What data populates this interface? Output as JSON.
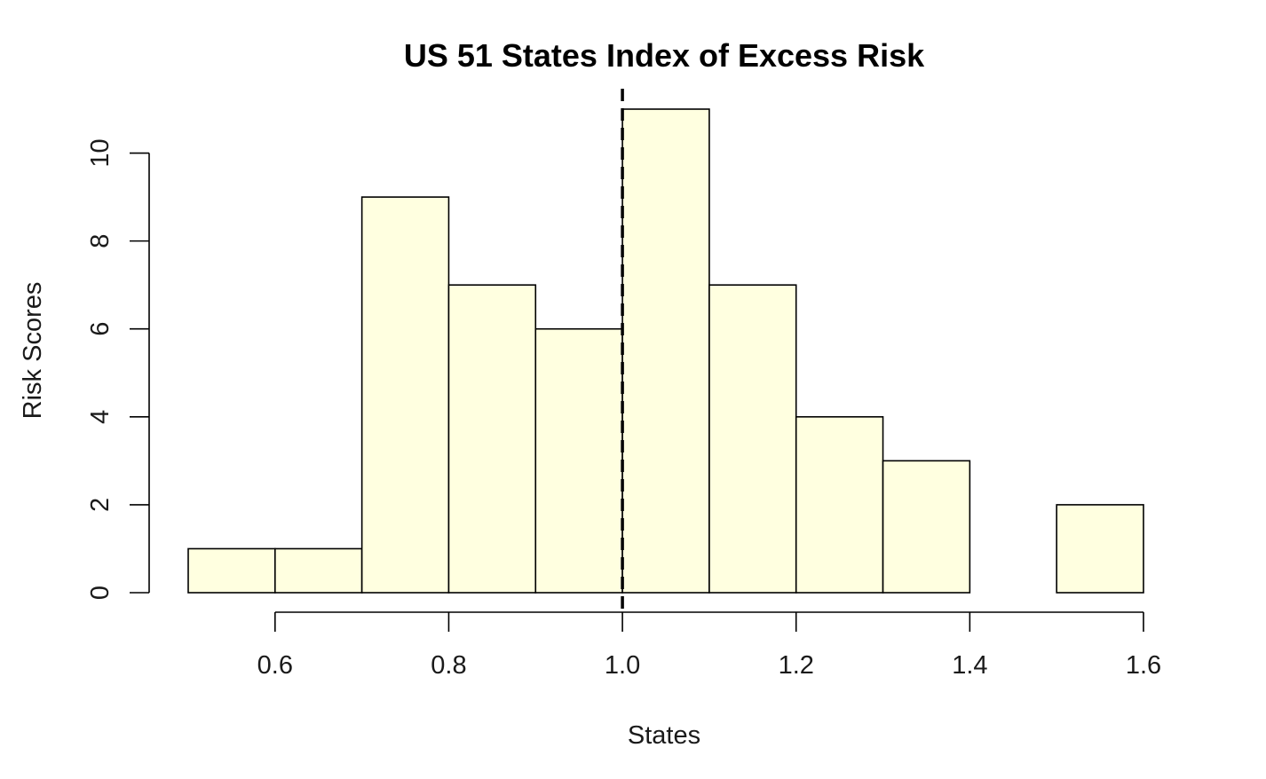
{
  "chart_data": {
    "type": "histogram",
    "title": "US 51 States Index of Excess Risk",
    "xlabel": "States",
    "ylabel": "Risk Scores",
    "bin_edges": [
      0.5,
      0.6,
      0.7,
      0.8,
      0.9,
      1.0,
      1.1,
      1.2,
      1.3,
      1.4,
      1.5,
      1.6
    ],
    "counts": [
      1,
      1,
      9,
      7,
      6,
      11,
      7,
      4,
      3,
      0,
      2
    ],
    "xlim": [
      0.5,
      1.6
    ],
    "ylim": [
      0,
      11
    ],
    "x_ticks": [
      0.6,
      0.8,
      1.0,
      1.2,
      1.4,
      1.6
    ],
    "x_tick_labels": [
      "0.6",
      "0.8",
      "1.0",
      "1.2",
      "1.4",
      "1.6"
    ],
    "y_ticks": [
      0,
      2,
      4,
      6,
      8,
      10
    ],
    "y_tick_labels": [
      "0",
      "2",
      "4",
      "6",
      "8",
      "10"
    ],
    "reference_line": {
      "x": 1.0,
      "style": "dashed"
    },
    "bar_color": "#ffffe0",
    "grid": false,
    "legend": "none"
  }
}
